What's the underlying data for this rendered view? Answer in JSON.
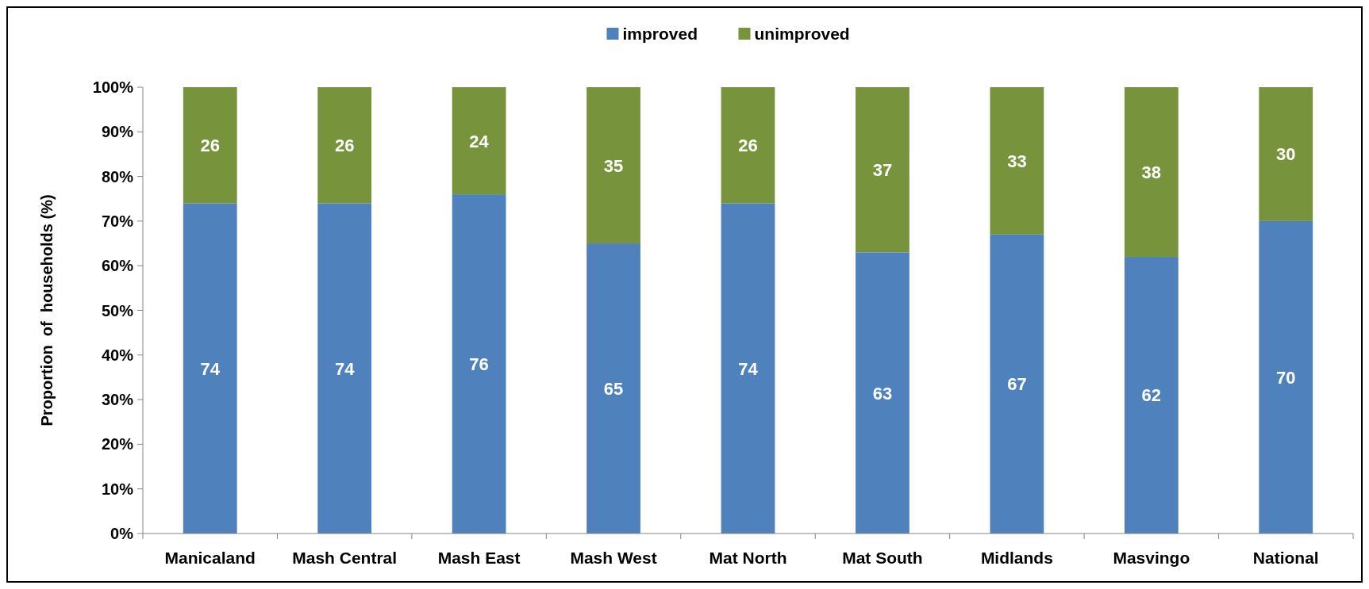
{
  "chart_data": {
    "type": "bar",
    "stacked": true,
    "ylabel": "Proportion  of  households (%)",
    "categories": [
      "Manicaland",
      "Mash Central",
      "Mash East",
      "Mash West",
      "Mat North",
      "Mat South",
      "Midlands",
      "Masvingo",
      "National"
    ],
    "series": [
      {
        "name": "improved",
        "color": "#4f81bd",
        "values": [
          74,
          74,
          76,
          65,
          74,
          63,
          67,
          62,
          70
        ]
      },
      {
        "name": "unimproved",
        "color": "#77933c",
        "values": [
          26,
          26,
          24,
          35,
          26,
          37,
          33,
          38,
          30
        ]
      }
    ],
    "ylim": [
      0,
      100
    ],
    "yticks": [
      {
        "value": 0,
        "label": "0%"
      },
      {
        "value": 10,
        "label": "10%"
      },
      {
        "value": 20,
        "label": "20%"
      },
      {
        "value": 30,
        "label": "30%"
      },
      {
        "value": 40,
        "label": "40%"
      },
      {
        "value": 50,
        "label": "50%"
      },
      {
        "value": 60,
        "label": "60%"
      },
      {
        "value": 70,
        "label": "70%"
      },
      {
        "value": 80,
        "label": "80%"
      },
      {
        "value": 90,
        "label": "90%"
      },
      {
        "value": 100,
        "label": "100%"
      }
    ],
    "data_labels": true,
    "legend": "top",
    "grid": false
  }
}
